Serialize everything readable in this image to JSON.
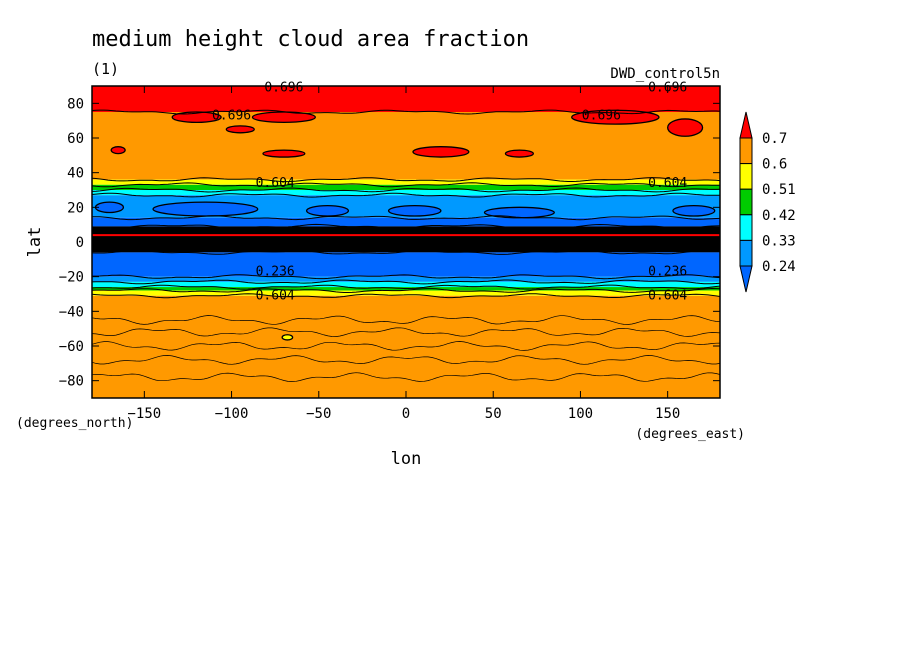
{
  "chart_data": {
    "type": "heatmap",
    "title": "medium height cloud area fraction",
    "subtitle": "(1)",
    "run_label": "DWD_control5n",
    "xlabel": "lon",
    "ylabel": "lat",
    "x_units": "(degrees_east)",
    "y_units": "(degrees_north)",
    "xlim": [
      -180,
      180
    ],
    "ylim": [
      -90,
      90
    ],
    "x_ticks": [
      -150,
      -100,
      -50,
      0,
      50,
      100,
      150
    ],
    "y_ticks": [
      -80,
      -60,
      -40,
      -20,
      0,
      20,
      40,
      60,
      80
    ],
    "colorbar": {
      "levels": [
        0.7,
        0.6,
        0.51,
        0.42,
        0.33,
        0.24
      ],
      "level_labels": [
        "0.7",
        "0.6",
        "0.51",
        "0.42",
        "0.33",
        "0.24"
      ],
      "colors": [
        "#ff0000",
        "#ff9900",
        "#ffff00",
        "#00cc00",
        "#00ffff",
        "#0099ff",
        "#0066ff"
      ],
      "extend": "both"
    },
    "bands": [
      {
        "lat_from": 90,
        "lat_to": 75,
        "color": "#ff0000"
      },
      {
        "lat_from": 75,
        "lat_to": 36,
        "color": "#ff9900"
      },
      {
        "lat_from": 36,
        "lat_to": 33,
        "color": "#ffff00"
      },
      {
        "lat_from": 33,
        "lat_to": 30,
        "color": "#00cc00"
      },
      {
        "lat_from": 30,
        "lat_to": 27,
        "color": "#00ffff"
      },
      {
        "lat_from": 27,
        "lat_to": 14,
        "color": "#0099ff"
      },
      {
        "lat_from": 14,
        "lat_to": 9,
        "color": "#0066ff"
      },
      {
        "lat_from": 9,
        "lat_to": -6,
        "color": "#000000"
      },
      {
        "lat_from": -6,
        "lat_to": -20,
        "color": "#0066ff"
      },
      {
        "lat_from": -20,
        "lat_to": -23,
        "color": "#0099ff"
      },
      {
        "lat_from": -23,
        "lat_to": -26,
        "color": "#00ffff"
      },
      {
        "lat_from": -26,
        "lat_to": -28,
        "color": "#00cc00"
      },
      {
        "lat_from": -28,
        "lat_to": -31,
        "color": "#ffff00"
      },
      {
        "lat_from": -31,
        "lat_to": -90,
        "color": "#ff9900"
      }
    ],
    "blobs": [
      {
        "lon": -120,
        "lat": 72,
        "rx": 14,
        "ry": 3,
        "color": "#ff0000"
      },
      {
        "lon": -70,
        "lat": 72,
        "rx": 18,
        "ry": 3,
        "color": "#ff0000"
      },
      {
        "lon": -95,
        "lat": 65,
        "rx": 8,
        "ry": 2,
        "color": "#ff0000"
      },
      {
        "lon": -165,
        "lat": 53,
        "rx": 4,
        "ry": 2,
        "color": "#ff0000"
      },
      {
        "lon": -70,
        "lat": 51,
        "rx": 12,
        "ry": 2,
        "color": "#ff0000"
      },
      {
        "lon": 20,
        "lat": 52,
        "rx": 16,
        "ry": 3,
        "color": "#ff0000"
      },
      {
        "lon": 65,
        "lat": 51,
        "rx": 8,
        "ry": 2,
        "color": "#ff0000"
      },
      {
        "lon": 120,
        "lat": 72,
        "rx": 25,
        "ry": 4,
        "color": "#ff0000"
      },
      {
        "lon": 160,
        "lat": 66,
        "rx": 10,
        "ry": 5,
        "color": "#ff0000"
      },
      {
        "lon": -170,
        "lat": 20,
        "rx": 8,
        "ry": 3,
        "color": "#0066ff"
      },
      {
        "lon": -115,
        "lat": 19,
        "rx": 30,
        "ry": 4,
        "color": "#0066ff"
      },
      {
        "lon": -45,
        "lat": 18,
        "rx": 12,
        "ry": 3,
        "color": "#0066ff"
      },
      {
        "lon": 5,
        "lat": 18,
        "rx": 15,
        "ry": 3,
        "color": "#0066ff"
      },
      {
        "lon": 65,
        "lat": 17,
        "rx": 20,
        "ry": 3,
        "color": "#0066ff"
      },
      {
        "lon": 165,
        "lat": 18,
        "rx": 12,
        "ry": 3,
        "color": "#0066ff"
      },
      {
        "lon": -68,
        "lat": -55,
        "rx": 3,
        "ry": 1.5,
        "color": "#ffff00"
      }
    ],
    "contour_labels": [
      {
        "text": "0.696",
        "lon": -70,
        "lat": 89
      },
      {
        "text": "0.696",
        "lon": 150,
        "lat": 89
      },
      {
        "text": "0.696",
        "lon": -100,
        "lat": 73
      },
      {
        "text": "0.696",
        "lon": 112,
        "lat": 73
      },
      {
        "text": "0.604",
        "lon": -75,
        "lat": 34
      },
      {
        "text": "0.604",
        "lon": 150,
        "lat": 34
      },
      {
        "text": "0.236",
        "lon": -75,
        "lat": -17
      },
      {
        "text": "0.236",
        "lon": 150,
        "lat": -17
      },
      {
        "text": "0.604",
        "lon": -75,
        "lat": -31
      },
      {
        "text": "0.604",
        "lon": 150,
        "lat": -31
      }
    ],
    "equator_line_lat": 4
  }
}
